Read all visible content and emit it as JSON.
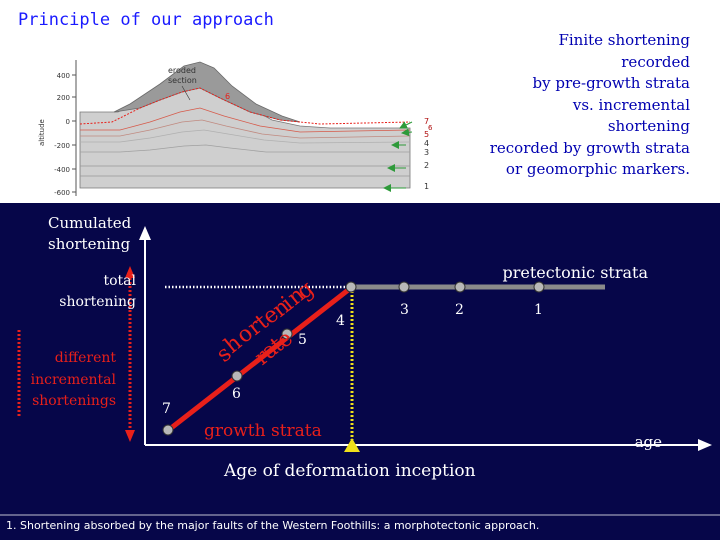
{
  "title": "Principle of our approach",
  "note_lines": [
    "Finite shortening",
    "recorded",
    "by pre-growth strata",
    "vs. incremental",
    "shortening",
    "recorded by growth strata",
    "or geomorphic markers."
  ],
  "section": {
    "eroded_lines": [
      "eroded",
      "section"
    ],
    "y_ticks": [
      "400",
      "200",
      "0",
      "-200",
      "-400",
      "-600"
    ],
    "y_label": "altitude",
    "layer_number_6": "6",
    "right_labels": [
      "7",
      "6",
      "5",
      "4",
      "3",
      "2",
      "1"
    ]
  },
  "diagram": {
    "cumulated_lines": [
      "Cumulated",
      "shortening"
    ],
    "total_lines": [
      "total",
      "shortening"
    ],
    "different_lines": [
      "different",
      "incremental",
      "shortenings"
    ],
    "pretectonic": "pretectonic strata",
    "points": [
      "1",
      "2",
      "3",
      "4",
      "5",
      "6",
      "7"
    ],
    "shortening_rate_letters": [
      "s",
      "h",
      "o",
      "r",
      "t",
      "e",
      "n",
      "i",
      "n",
      "g"
    ],
    "rate_letters": [
      "r",
      "a",
      "t",
      "e"
    ],
    "growth": "growth strata",
    "age": "age",
    "inception": "Age of deformation inception"
  },
  "caption": "1. Shortening absorbed by the major faults of the Western Foothills: a morphotectonic approach.",
  "colors": {
    "dark_bg": "#060649",
    "accent_red": "#e8201a",
    "gray_line": "#8a8a8a",
    "yellow": "#f0e01a"
  }
}
